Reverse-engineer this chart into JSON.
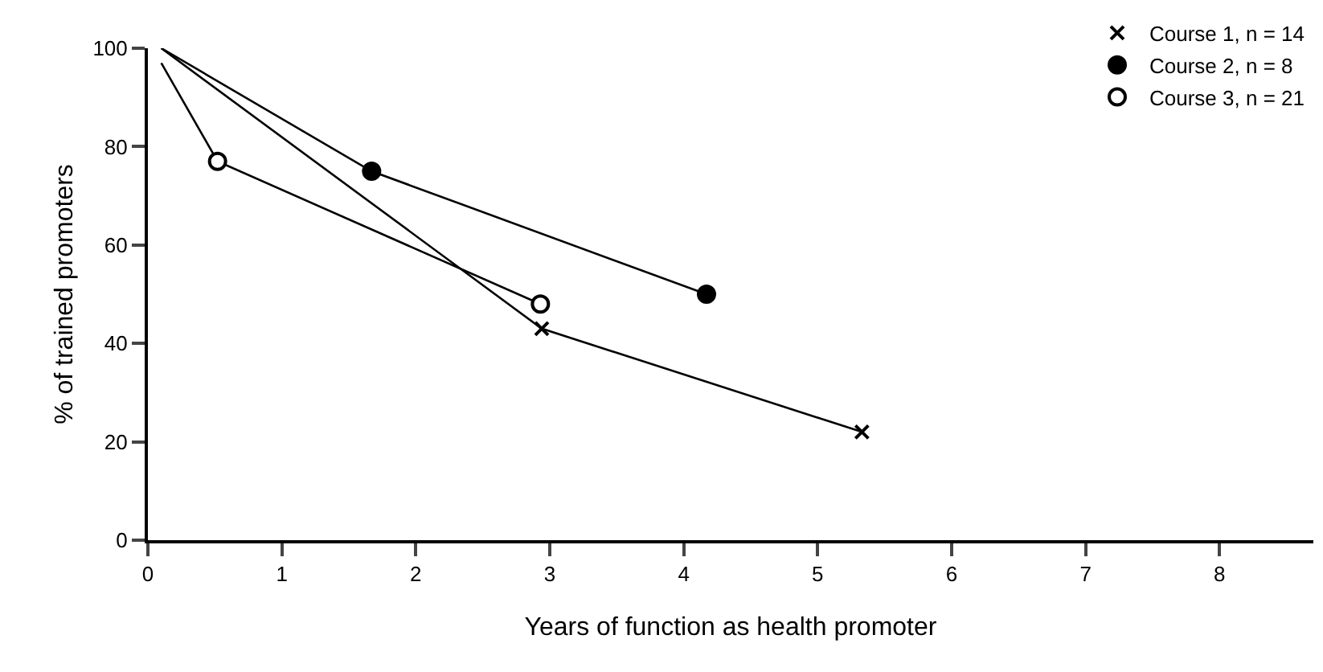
{
  "chart_data": {
    "type": "line",
    "xlabel": "Years of function as health promoter",
    "ylabel": "% of trained promoters",
    "series": [
      {
        "name": "Course 1, n = 14",
        "color": "#000000",
        "marker": [
          "none",
          "cross",
          "cross"
        ],
        "x": [
          0.1,
          2.94,
          5.33
        ],
        "values": [
          100,
          43,
          22
        ]
      },
      {
        "name": "Course 2, n = 8",
        "color": "#000000",
        "marker": [
          "none",
          "circle",
          "circle"
        ],
        "x": [
          0.1,
          1.67,
          4.17
        ],
        "values": [
          100,
          75,
          50
        ]
      },
      {
        "name": "Course 3, n = 21",
        "color": "#000000",
        "marker": [
          "none",
          "circle-open",
          "circle-open"
        ],
        "x": [
          0.1,
          0.52,
          2.93
        ],
        "values": [
          97,
          77,
          48
        ]
      }
    ],
    "xlim": [
      0,
      8.7
    ],
    "ylim": [
      0,
      100
    ],
    "xticks": [
      0,
      1,
      2,
      3,
      4,
      5,
      6,
      7,
      8
    ],
    "yticks": [
      0,
      20,
      40,
      60,
      80,
      100
    ],
    "legend": "top right",
    "line_style": "solid"
  }
}
